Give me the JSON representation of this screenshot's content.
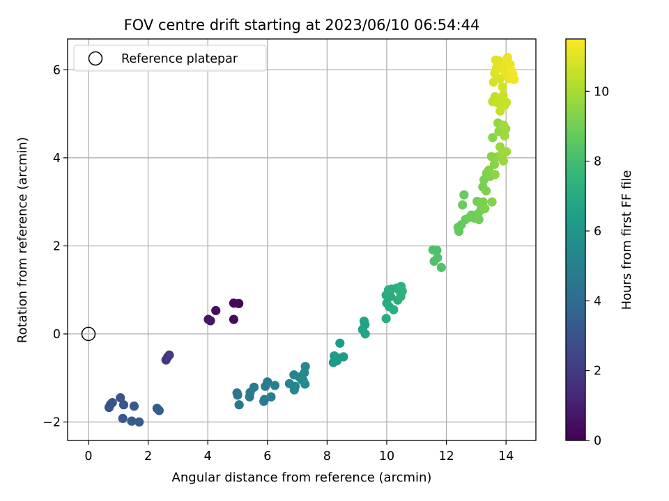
{
  "chart_data": {
    "type": "scatter",
    "title": "FOV centre drift starting at 2023/06/10 06:54:44",
    "xlabel": "Angular distance from reference (arcmin)",
    "ylabel": "Rotation from reference (arcmin)",
    "xlim": [
      -0.7,
      15
    ],
    "ylim": [
      -2.42,
      6.7
    ],
    "xticks": [
      0,
      2,
      4,
      6,
      8,
      10,
      12,
      14
    ],
    "yticks": [
      -2,
      0,
      2,
      4,
      6
    ],
    "xtick_labels": [
      "0",
      "2",
      "4",
      "6",
      "8",
      "10",
      "12",
      "14"
    ],
    "ytick_labels": [
      "−2",
      "0",
      "2",
      "4",
      "6"
    ],
    "grid": true,
    "legend": {
      "placement": "upper-left",
      "entries": [
        {
          "label": "Reference platepar",
          "marker": "open-circle"
        }
      ]
    },
    "reference_point": {
      "x": 0,
      "y": 0
    },
    "colorbar": {
      "label": "Hours from first FF file",
      "range": [
        0,
        11.5
      ],
      "ticks": [
        0,
        2,
        4,
        6,
        8,
        10
      ],
      "tick_labels": [
        "0",
        "2",
        "4",
        "6",
        "8",
        "10"
      ],
      "colormap": "viridis"
    },
    "colormap_stops": [
      "#440154",
      "#482878",
      "#3e4989",
      "#31688e",
      "#26828e",
      "#1f9e89",
      "#35b779",
      "#6ece58",
      "#b5de2b",
      "#fde725"
    ],
    "points": [
      {
        "x": 4.87,
        "y": 0.7,
        "h": 0.1
      },
      {
        "x": 5.04,
        "y": 0.69,
        "h": 0.15
      },
      {
        "x": 4.27,
        "y": 0.53,
        "h": 0.4
      },
      {
        "x": 4.02,
        "y": 0.33,
        "h": 0.6
      },
      {
        "x": 4.09,
        "y": 0.3,
        "h": 0.7
      },
      {
        "x": 4.87,
        "y": 0.33,
        "h": 0.3
      },
      {
        "x": 2.6,
        "y": -0.59,
        "h": 1.8
      },
      {
        "x": 2.66,
        "y": -0.52,
        "h": 1.9
      },
      {
        "x": 2.71,
        "y": -0.48,
        "h": 2.0
      },
      {
        "x": 0.74,
        "y": -1.6,
        "h": 3.0
      },
      {
        "x": 0.69,
        "y": -1.67,
        "h": 3.0
      },
      {
        "x": 0.8,
        "y": -1.56,
        "h": 3.0
      },
      {
        "x": 1.07,
        "y": -1.45,
        "h": 3.1
      },
      {
        "x": 1.18,
        "y": -1.61,
        "h": 3.1
      },
      {
        "x": 1.53,
        "y": -1.64,
        "h": 3.2
      },
      {
        "x": 1.15,
        "y": -1.92,
        "h": 3.2
      },
      {
        "x": 1.45,
        "y": -1.98,
        "h": 3.3
      },
      {
        "x": 1.7,
        "y": -2.0,
        "h": 3.3
      },
      {
        "x": 2.3,
        "y": -1.69,
        "h": 3.4
      },
      {
        "x": 2.37,
        "y": -1.74,
        "h": 3.4
      },
      {
        "x": 4.98,
        "y": -1.34,
        "h": 4.5
      },
      {
        "x": 5.0,
        "y": -1.39,
        "h": 4.5
      },
      {
        "x": 5.05,
        "y": -1.61,
        "h": 4.6
      },
      {
        "x": 5.4,
        "y": -1.43,
        "h": 4.7
      },
      {
        "x": 5.42,
        "y": -1.33,
        "h": 4.7
      },
      {
        "x": 5.55,
        "y": -1.21,
        "h": 4.8
      },
      {
        "x": 5.88,
        "y": -1.53,
        "h": 4.8
      },
      {
        "x": 5.9,
        "y": -1.49,
        "h": 4.8
      },
      {
        "x": 5.93,
        "y": -1.19,
        "h": 4.9
      },
      {
        "x": 6.0,
        "y": -1.09,
        "h": 4.9
      },
      {
        "x": 6.12,
        "y": -1.43,
        "h": 4.9
      },
      {
        "x": 6.25,
        "y": -1.17,
        "h": 5.0
      },
      {
        "x": 6.74,
        "y": -1.13,
        "h": 5.2
      },
      {
        "x": 6.89,
        "y": -0.93,
        "h": 5.2
      },
      {
        "x": 6.93,
        "y": -1.19,
        "h": 5.3
      },
      {
        "x": 6.9,
        "y": -1.27,
        "h": 5.3
      },
      {
        "x": 7.07,
        "y": -0.98,
        "h": 5.3
      },
      {
        "x": 7.15,
        "y": -1.04,
        "h": 5.4
      },
      {
        "x": 7.24,
        "y": -0.88,
        "h": 5.4
      },
      {
        "x": 7.27,
        "y": -0.74,
        "h": 5.4
      },
      {
        "x": 7.26,
        "y": -1.14,
        "h": 5.5
      },
      {
        "x": 7.2,
        "y": -1.06,
        "h": 5.5
      },
      {
        "x": 8.21,
        "y": -0.65,
        "h": 6.2
      },
      {
        "x": 8.24,
        "y": -0.5,
        "h": 6.2
      },
      {
        "x": 8.33,
        "y": -0.61,
        "h": 6.2
      },
      {
        "x": 8.43,
        "y": -0.21,
        "h": 6.3
      },
      {
        "x": 8.38,
        "y": -0.55,
        "h": 6.3
      },
      {
        "x": 8.55,
        "y": -0.52,
        "h": 6.3
      },
      {
        "x": 9.19,
        "y": 0.1,
        "h": 6.6
      },
      {
        "x": 9.24,
        "y": 0.29,
        "h": 6.6
      },
      {
        "x": 9.27,
        "y": 0.21,
        "h": 6.6
      },
      {
        "x": 9.28,
        "y": 0.0,
        "h": 6.7
      },
      {
        "x": 9.98,
        "y": 0.35,
        "h": 7.0
      },
      {
        "x": 10.0,
        "y": 0.7,
        "h": 7.0
      },
      {
        "x": 9.98,
        "y": 0.88,
        "h": 7.0
      },
      {
        "x": 10.06,
        "y": 1.0,
        "h": 7.1
      },
      {
        "x": 10.08,
        "y": 0.62,
        "h": 7.1
      },
      {
        "x": 10.13,
        "y": 0.85,
        "h": 7.1
      },
      {
        "x": 10.16,
        "y": 1.02,
        "h": 7.2
      },
      {
        "x": 10.23,
        "y": 0.55,
        "h": 7.2
      },
      {
        "x": 10.33,
        "y": 1.04,
        "h": 7.2
      },
      {
        "x": 10.37,
        "y": 0.77,
        "h": 7.2
      },
      {
        "x": 10.43,
        "y": 0.98,
        "h": 7.3
      },
      {
        "x": 10.47,
        "y": 0.85,
        "h": 7.3
      },
      {
        "x": 10.52,
        "y": 0.97,
        "h": 7.3
      },
      {
        "x": 10.48,
        "y": 1.08,
        "h": 7.3
      },
      {
        "x": 11.55,
        "y": 1.91,
        "h": 8.2
      },
      {
        "x": 11.68,
        "y": 1.9,
        "h": 8.2
      },
      {
        "x": 11.59,
        "y": 1.65,
        "h": 8.3
      },
      {
        "x": 11.7,
        "y": 1.73,
        "h": 8.3
      },
      {
        "x": 11.83,
        "y": 1.51,
        "h": 8.3
      },
      {
        "x": 12.39,
        "y": 2.42,
        "h": 8.7
      },
      {
        "x": 12.42,
        "y": 2.33,
        "h": 8.7
      },
      {
        "x": 12.5,
        "y": 2.48,
        "h": 8.7
      },
      {
        "x": 12.54,
        "y": 2.93,
        "h": 8.8
      },
      {
        "x": 12.59,
        "y": 3.16,
        "h": 8.8
      },
      {
        "x": 12.64,
        "y": 2.6,
        "h": 8.8
      },
      {
        "x": 12.78,
        "y": 2.65,
        "h": 8.9
      },
      {
        "x": 12.84,
        "y": 2.7,
        "h": 8.9
      },
      {
        "x": 12.95,
        "y": 2.63,
        "h": 8.9
      },
      {
        "x": 13.06,
        "y": 2.73,
        "h": 9.0
      },
      {
        "x": 13.09,
        "y": 2.6,
        "h": 9.0
      },
      {
        "x": 13.03,
        "y": 3.01,
        "h": 9.0
      },
      {
        "x": 13.16,
        "y": 2.82,
        "h": 9.0
      },
      {
        "x": 13.14,
        "y": 2.96,
        "h": 9.1
      },
      {
        "x": 13.23,
        "y": 3.0,
        "h": 9.1
      },
      {
        "x": 13.22,
        "y": 3.34,
        "h": 9.1
      },
      {
        "x": 13.26,
        "y": 3.5,
        "h": 9.1
      },
      {
        "x": 13.33,
        "y": 3.25,
        "h": 9.2
      },
      {
        "x": 13.29,
        "y": 2.85,
        "h": 9.2
      },
      {
        "x": 13.35,
        "y": 3.65,
        "h": 9.2
      },
      {
        "x": 13.42,
        "y": 3.72,
        "h": 9.3
      },
      {
        "x": 13.47,
        "y": 3.58,
        "h": 9.3
      },
      {
        "x": 13.53,
        "y": 3.0,
        "h": 9.3
      },
      {
        "x": 13.51,
        "y": 4.03,
        "h": 9.4
      },
      {
        "x": 13.55,
        "y": 4.46,
        "h": 9.4
      },
      {
        "x": 13.61,
        "y": 3.85,
        "h": 9.4
      },
      {
        "x": 13.63,
        "y": 3.62,
        "h": 9.5
      },
      {
        "x": 13.7,
        "y": 4.02,
        "h": 9.5
      },
      {
        "x": 13.73,
        "y": 4.79,
        "h": 9.6
      },
      {
        "x": 13.76,
        "y": 4.6,
        "h": 9.6
      },
      {
        "x": 13.8,
        "y": 4.25,
        "h": 9.7
      },
      {
        "x": 13.86,
        "y": 4.08,
        "h": 9.7
      },
      {
        "x": 13.91,
        "y": 3.93,
        "h": 9.7
      },
      {
        "x": 13.95,
        "y": 4.5,
        "h": 9.8
      },
      {
        "x": 13.99,
        "y": 4.66,
        "h": 9.8
      },
      {
        "x": 14.01,
        "y": 4.14,
        "h": 9.8
      },
      {
        "x": 13.92,
        "y": 4.74,
        "h": 9.9
      },
      {
        "x": 13.55,
        "y": 5.28,
        "h": 10.4
      },
      {
        "x": 13.63,
        "y": 5.39,
        "h": 10.4
      },
      {
        "x": 13.71,
        "y": 5.25,
        "h": 10.5
      },
      {
        "x": 13.8,
        "y": 5.06,
        "h": 10.5
      },
      {
        "x": 13.84,
        "y": 5.3,
        "h": 10.5
      },
      {
        "x": 13.9,
        "y": 5.42,
        "h": 10.6
      },
      {
        "x": 13.95,
        "y": 5.19,
        "h": 10.6
      },
      {
        "x": 14.01,
        "y": 5.26,
        "h": 10.6
      },
      {
        "x": 13.88,
        "y": 5.61,
        "h": 10.7
      },
      {
        "x": 13.8,
        "y": 5.8,
        "h": 10.8
      },
      {
        "x": 13.58,
        "y": 5.72,
        "h": 10.8
      },
      {
        "x": 13.62,
        "y": 5.92,
        "h": 10.9
      },
      {
        "x": 13.68,
        "y": 6.05,
        "h": 11.0
      },
      {
        "x": 13.65,
        "y": 6.22,
        "h": 11.0
      },
      {
        "x": 13.78,
        "y": 6.2,
        "h": 11.0
      },
      {
        "x": 13.88,
        "y": 6.02,
        "h": 11.1
      },
      {
        "x": 13.95,
        "y": 6.1,
        "h": 11.1
      },
      {
        "x": 14.0,
        "y": 5.92,
        "h": 11.1
      },
      {
        "x": 14.05,
        "y": 6.28,
        "h": 11.2
      },
      {
        "x": 14.1,
        "y": 5.8,
        "h": 11.2
      },
      {
        "x": 14.14,
        "y": 6.12,
        "h": 11.2
      },
      {
        "x": 14.18,
        "y": 5.98,
        "h": 11.3
      },
      {
        "x": 14.27,
        "y": 5.78,
        "h": 11.3
      },
      {
        "x": 14.23,
        "y": 5.9,
        "h": 11.3
      }
    ]
  }
}
